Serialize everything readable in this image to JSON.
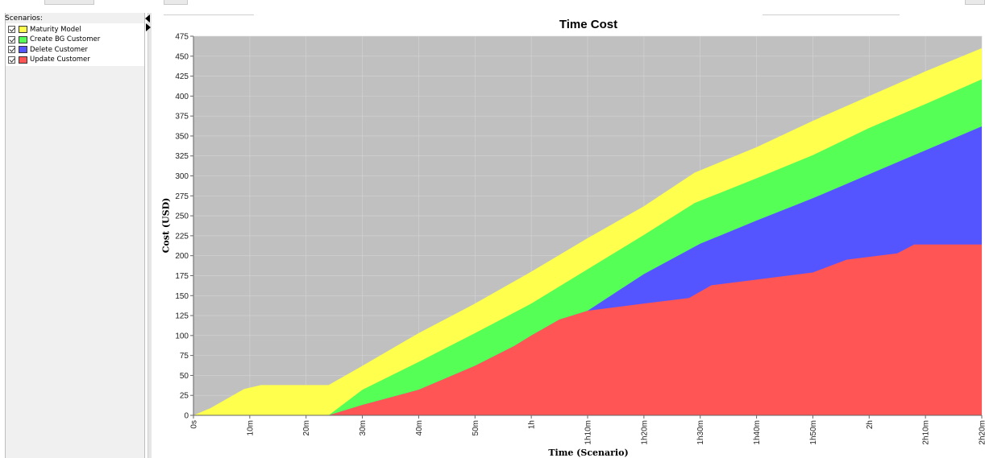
{
  "panel": {
    "scenarios_label": "Scenarios:",
    "items": [
      {
        "label": "Maturity Model",
        "color": "#ffff4d",
        "checked": true
      },
      {
        "label": "Create BG Customer",
        "color": "#55ff55",
        "checked": true
      },
      {
        "label": "Delete Customer",
        "color": "#5555ff",
        "checked": true
      },
      {
        "label": "Update Customer",
        "color": "#ff5555",
        "checked": true
      }
    ]
  },
  "chart_data": {
    "type": "area",
    "stacked": true,
    "title": "Time Cost",
    "ylabel": "Cost (USD)",
    "xlabel": "Time (Scenario)",
    "x_unit": "minutes",
    "xlim": [
      0,
      140
    ],
    "ylim": [
      0,
      475
    ],
    "y_ticks": [
      0,
      25,
      50,
      75,
      100,
      125,
      150,
      175,
      200,
      225,
      250,
      275,
      300,
      325,
      350,
      375,
      400,
      425,
      450,
      475
    ],
    "x_ticks": [
      {
        "value": 0,
        "label": "0s"
      },
      {
        "value": 10,
        "label": "10m"
      },
      {
        "value": 20,
        "label": "20m"
      },
      {
        "value": 30,
        "label": "30m"
      },
      {
        "value": 40,
        "label": "40m"
      },
      {
        "value": 50,
        "label": "50m"
      },
      {
        "value": 60,
        "label": "1h"
      },
      {
        "value": 70,
        "label": "1h10m"
      },
      {
        "value": 80,
        "label": "1h20m"
      },
      {
        "value": 90,
        "label": "1h30m"
      },
      {
        "value": 100,
        "label": "1h40m"
      },
      {
        "value": 110,
        "label": "1h50m"
      },
      {
        "value": 120,
        "label": "2h"
      },
      {
        "value": 130,
        "label": "2h10m"
      },
      {
        "value": 140,
        "label": "2h20m"
      }
    ],
    "grid": true,
    "background": "#c0c0c0",
    "series": [
      {
        "name": "Update Customer",
        "color": "#ff5555",
        "points": [
          [
            0,
            0
          ],
          [
            24,
            0
          ],
          [
            30,
            13
          ],
          [
            40,
            32
          ],
          [
            50,
            62
          ],
          [
            57,
            87
          ],
          [
            60,
            100
          ],
          [
            65,
            120
          ],
          [
            70,
            131
          ],
          [
            80,
            140
          ],
          [
            88,
            147
          ],
          [
            92,
            163
          ],
          [
            100,
            170
          ],
          [
            110,
            179
          ],
          [
            116,
            195
          ],
          [
            125,
            203
          ],
          [
            128,
            214
          ],
          [
            140,
            214
          ]
        ]
      },
      {
        "name": "Delete Customer",
        "color": "#5555ff",
        "points": [
          [
            0,
            0
          ],
          [
            24,
            0
          ],
          [
            30,
            13
          ],
          [
            40,
            32
          ],
          [
            50,
            62
          ],
          [
            57,
            87
          ],
          [
            60,
            100
          ],
          [
            65,
            120
          ],
          [
            70,
            131
          ],
          [
            80,
            177
          ],
          [
            90,
            215
          ],
          [
            100,
            244
          ],
          [
            110,
            272
          ],
          [
            120,
            302
          ],
          [
            130,
            332
          ],
          [
            140,
            362
          ]
        ]
      },
      {
        "name": "Create BG Customer",
        "color": "#55ff55",
        "points": [
          [
            0,
            0
          ],
          [
            24,
            0
          ],
          [
            30,
            32
          ],
          [
            40,
            67
          ],
          [
            50,
            103
          ],
          [
            60,
            140
          ],
          [
            70,
            183
          ],
          [
            80,
            226
          ],
          [
            89,
            266
          ],
          [
            100,
            297
          ],
          [
            110,
            326
          ],
          [
            120,
            360
          ],
          [
            130,
            390
          ],
          [
            140,
            421
          ]
        ]
      },
      {
        "name": "Maturity Model",
        "color": "#ffff4d",
        "points": [
          [
            0,
            0
          ],
          [
            3,
            9
          ],
          [
            9,
            33
          ],
          [
            12,
            38
          ],
          [
            24,
            38
          ],
          [
            30,
            62
          ],
          [
            40,
            103
          ],
          [
            50,
            140
          ],
          [
            60,
            180
          ],
          [
            70,
            222
          ],
          [
            80,
            262
          ],
          [
            89,
            304
          ],
          [
            100,
            336
          ],
          [
            110,
            369
          ],
          [
            120,
            400
          ],
          [
            130,
            431
          ],
          [
            140,
            460
          ]
        ]
      }
    ]
  }
}
